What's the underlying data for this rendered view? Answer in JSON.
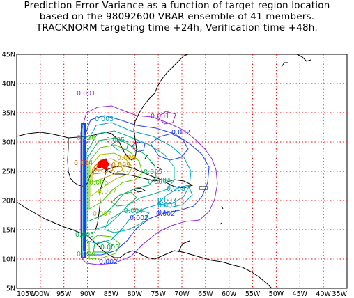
{
  "title": {
    "line1": "Prediction Error Variance as a function of target region location",
    "line2": "based on the 98092600 VBAR ensemble of 41 members.",
    "line3": "TRACKNORM targeting time +24h, Verification time +48h."
  },
  "axes": {
    "lon_ticks": [
      "105W",
      "100W",
      "95W",
      "90W",
      "85W",
      "80W",
      "75W",
      "70W",
      "65W",
      "60W",
      "55W",
      "50W",
      "45W",
      "40W",
      "35W"
    ],
    "lat_ticks": [
      "5N",
      "10N",
      "15N",
      "20N",
      "25N",
      "30N",
      "35N",
      "40N",
      "45N"
    ]
  },
  "grid_color": "#ff0000",
  "coast_color": "#000000",
  "contour_labels": [
    {
      "text": "0.001",
      "color": "#8a2be2"
    },
    {
      "text": "0.001",
      "color": "#8a2be2"
    },
    {
      "text": "0.002",
      "color": "#1e3cff"
    },
    {
      "text": "0.003",
      "color": "#00a0c8"
    },
    {
      "text": "0.003",
      "color": "#00a0c8"
    },
    {
      "text": "0.003",
      "color": "#00a0c8"
    },
    {
      "text": "0.004",
      "color": "#00b48c"
    },
    {
      "text": "0.005",
      "color": "#00b050"
    },
    {
      "text": "0.005",
      "color": "#00b050"
    },
    {
      "text": "0.006",
      "color": "#50c800"
    },
    {
      "text": "0.006",
      "color": "#50c800"
    },
    {
      "text": "0.006",
      "color": "#50c800"
    },
    {
      "text": "0.007",
      "color": "#a0c800"
    },
    {
      "text": "0.007",
      "color": "#a0c800"
    },
    {
      "text": "0.008",
      "color": "#c8a000"
    },
    {
      "text": "0.009",
      "color": "#d08000"
    },
    {
      "text": "0.014",
      "color": "#e06000"
    },
    {
      "text": "0.002",
      "color": "#1e3cff"
    },
    {
      "text": "0.002",
      "color": "#1e3cff"
    },
    {
      "text": "0.002",
      "color": "#1e3cff"
    },
    {
      "text": "0.004",
      "color": "#00b48c"
    },
    {
      "text": "0.005",
      "color": "#00b050"
    },
    {
      "text": "0.004",
      "color": "#00b48c"
    },
    {
      "text": "0.005",
      "color": "#00b050"
    },
    {
      "text": "0.003",
      "color": "#00a0c8"
    },
    {
      "text": "0.002",
      "color": "#1e3cff"
    }
  ]
}
